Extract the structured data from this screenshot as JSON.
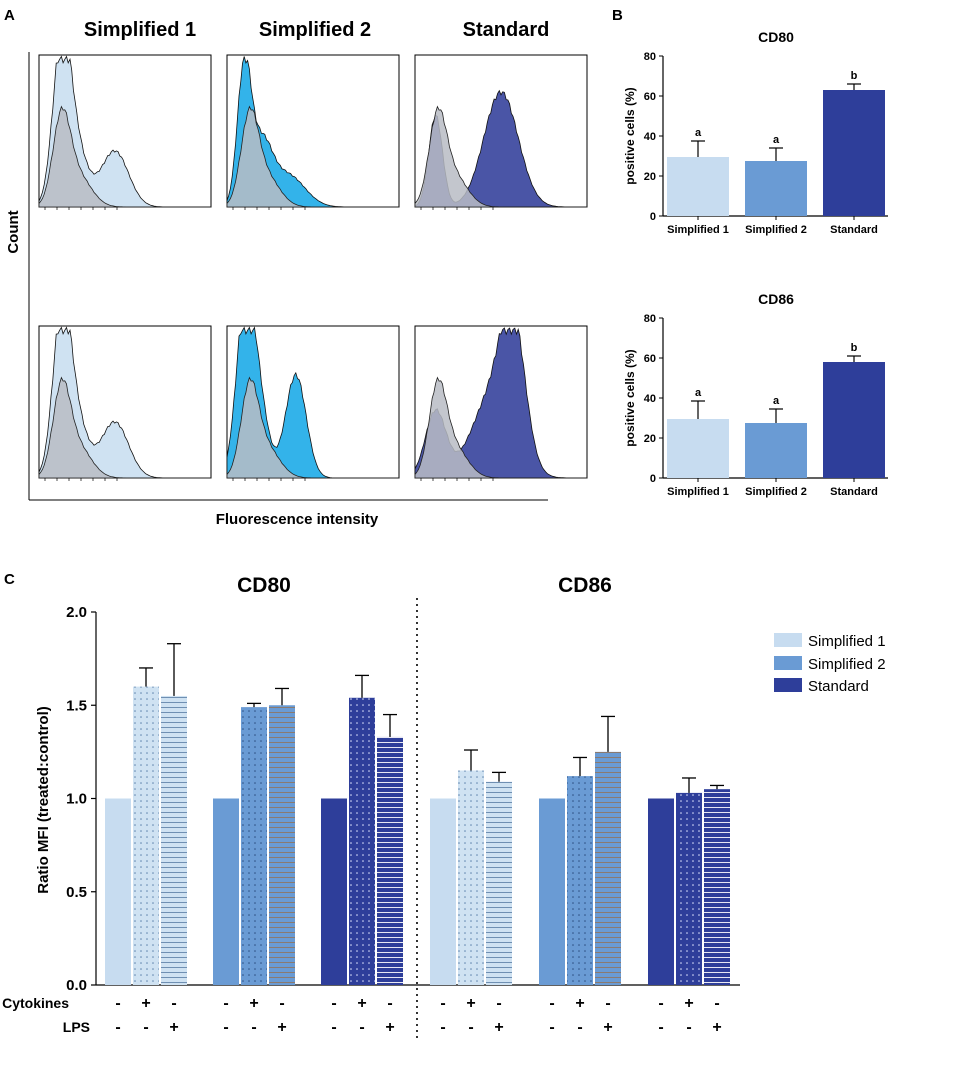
{
  "colors": {
    "simplified1": "#c7dcf0",
    "simplified2": "#6a9bd4",
    "standard": "#2e3e9a",
    "control_fill": "#b9bcc4",
    "sample_fill_1": "#cfe2f2",
    "sample_fill_2": "#33b3ea",
    "sample_fill_3": "#4a55a6"
  },
  "panel_a": {
    "letter": "A",
    "columns": [
      "Simplified 1",
      "Simplified 2",
      "Standard"
    ],
    "ylabel": "Count",
    "xlabel": "Fluorescence intensity"
  },
  "panel_b": {
    "letter": "B",
    "ylabel": "positive cells (%)"
  },
  "panel_c": {
    "letter": "C",
    "ylabel": "Ratio MFI (treated:control)",
    "row_labels": [
      "Cytokines",
      "LPS"
    ],
    "cytokines_signs": [
      "-",
      "+",
      "-"
    ],
    "lps_signs": [
      "-",
      "-",
      "+"
    ],
    "legend": [
      "Simplified 1",
      "Simplified 2",
      "Standard"
    ]
  },
  "chart_data": [
    {
      "id": "B-CD80",
      "type": "bar",
      "title": "CD80",
      "categories": [
        "Simplified 1",
        "Simplified 2",
        "Standard"
      ],
      "values": [
        29.5,
        27.5,
        63
      ],
      "errors": [
        8,
        6.5,
        3
      ],
      "annotations": [
        "a",
        "a",
        "b"
      ],
      "ylabel": "positive cells (%)",
      "ylim": [
        0,
        80
      ],
      "yticks": [
        0,
        20,
        40,
        60,
        80
      ]
    },
    {
      "id": "B-CD86",
      "type": "bar",
      "title": "CD86",
      "categories": [
        "Simplified 1",
        "Simplified 2",
        "Standard"
      ],
      "values": [
        29.5,
        27.5,
        58
      ],
      "errors": [
        9,
        7,
        3
      ],
      "annotations": [
        "a",
        "a",
        "b"
      ],
      "ylabel": "positive cells (%)",
      "ylim": [
        0,
        80
      ],
      "yticks": [
        0,
        20,
        40,
        60,
        80
      ]
    },
    {
      "id": "C",
      "type": "bar",
      "ylabel": "Ratio MFI (treated:control)",
      "ylim": [
        0,
        2.0
      ],
      "yticks": [
        "0.0",
        "0.5",
        "1.0",
        "1.5",
        "2.0"
      ],
      "panels": [
        {
          "title": "CD80",
          "groups": [
            {
              "name": "Simplified 1",
              "values": [
                1.0,
                1.6,
                1.55
              ],
              "errors": [
                0,
                0.1,
                0.28
              ]
            },
            {
              "name": "Simplified 2",
              "values": [
                1.0,
                1.49,
                1.5
              ],
              "errors": [
                0,
                0.02,
                0.09
              ]
            },
            {
              "name": "Standard",
              "values": [
                1.0,
                1.54,
                1.33
              ],
              "errors": [
                0,
                0.12,
                0.12
              ]
            }
          ]
        },
        {
          "title": "CD86",
          "groups": [
            {
              "name": "Simplified 1",
              "values": [
                1.0,
                1.15,
                1.09
              ],
              "errors": [
                0,
                0.11,
                0.05
              ]
            },
            {
              "name": "Simplified 2",
              "values": [
                1.0,
                1.12,
                1.25
              ],
              "errors": [
                0,
                0.1,
                0.19
              ]
            },
            {
              "name": "Standard",
              "values": [
                1.0,
                1.03,
                1.05
              ],
              "errors": [
                0,
                0.08,
                0.02
              ]
            }
          ]
        }
      ],
      "legend": [
        "Simplified 1",
        "Simplified 2",
        "Standard"
      ]
    }
  ]
}
